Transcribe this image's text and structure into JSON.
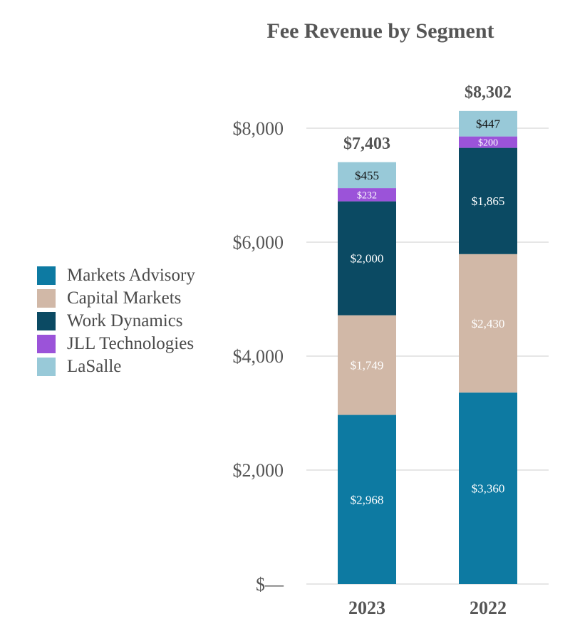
{
  "chart_data": {
    "type": "bar",
    "stacked": true,
    "title": "Fee Revenue by Segment",
    "categories": [
      "2023",
      "2022"
    ],
    "totals": [
      7403,
      8302
    ],
    "total_labels": [
      "$7,403",
      "$8,302"
    ],
    "series": [
      {
        "name": "Markets Advisory",
        "color": "#0d7aa2",
        "values": [
          2968,
          3360
        ],
        "labels": [
          "$2,968",
          "$3,360"
        ],
        "label_color": "#ffffff"
      },
      {
        "name": "Capital Markets",
        "color": "#d1b8a7",
        "values": [
          1749,
          2430
        ],
        "labels": [
          "$1,749",
          "$2,430"
        ],
        "label_color": "#ffffff"
      },
      {
        "name": "Work Dynamics",
        "color": "#0b4a63",
        "values": [
          2000,
          1865
        ],
        "labels": [
          "$2,000",
          "$1,865"
        ],
        "label_color": "#ffffff"
      },
      {
        "name": "JLL Technologies",
        "color": "#9b53d9",
        "values": [
          232,
          200
        ],
        "labels": [
          "$232",
          "$200"
        ],
        "label_color": "#ffffff"
      },
      {
        "name": "LaSalle",
        "color": "#98c9d8",
        "values": [
          455,
          447
        ],
        "labels": [
          "$455",
          "$447"
        ],
        "label_color": "#111111"
      }
    ],
    "y_ticks": [
      0,
      2000,
      4000,
      6000,
      8000
    ],
    "y_tick_labels": [
      "$—",
      "$2,000",
      "$4,000",
      "$6,000",
      "$8,000"
    ],
    "ylim": [
      0,
      8000
    ],
    "grid": true,
    "xlabel": "",
    "ylabel": "",
    "legend_position": "left"
  }
}
